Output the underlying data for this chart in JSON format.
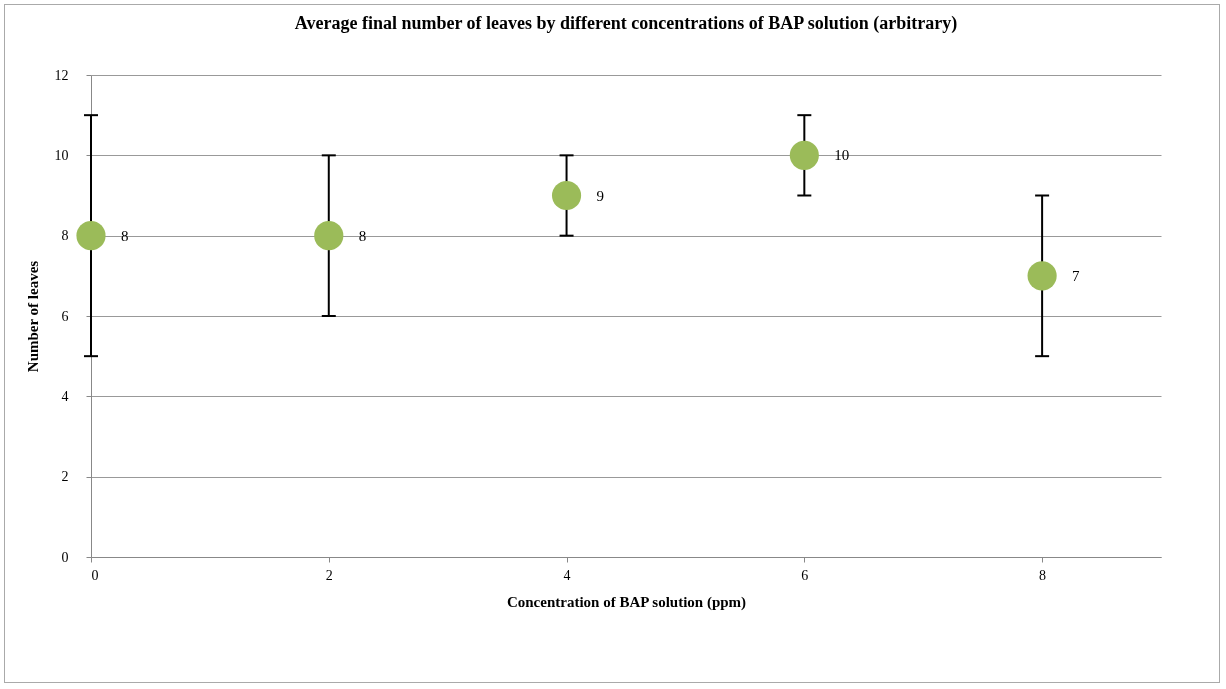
{
  "chart_data": {
    "type": "scatter",
    "title": "Average final number of leaves by different concentrations of BAP solution (arbitrary)",
    "xlabel": "Concentration of BAP solution (ppm)",
    "ylabel": "Number of leaves",
    "x": [
      0,
      2,
      4,
      6,
      8
    ],
    "series": [
      {
        "color": "#9bbb59",
        "values": [
          8,
          8,
          9,
          10,
          7
        ],
        "errors": [
          [
            5,
            11
          ],
          [
            6,
            10
          ],
          [
            8,
            10
          ],
          [
            9,
            11
          ],
          [
            5,
            9
          ]
        ]
      }
    ],
    "xlim": [
      0,
      9
    ],
    "xticks": [
      0,
      2,
      4,
      6,
      8
    ],
    "ylim": [
      0,
      12
    ],
    "yticks": [
      0,
      2,
      4,
      6,
      8,
      10,
      12
    ],
    "grid": "y",
    "marker": "circle",
    "data_labels": true
  }
}
